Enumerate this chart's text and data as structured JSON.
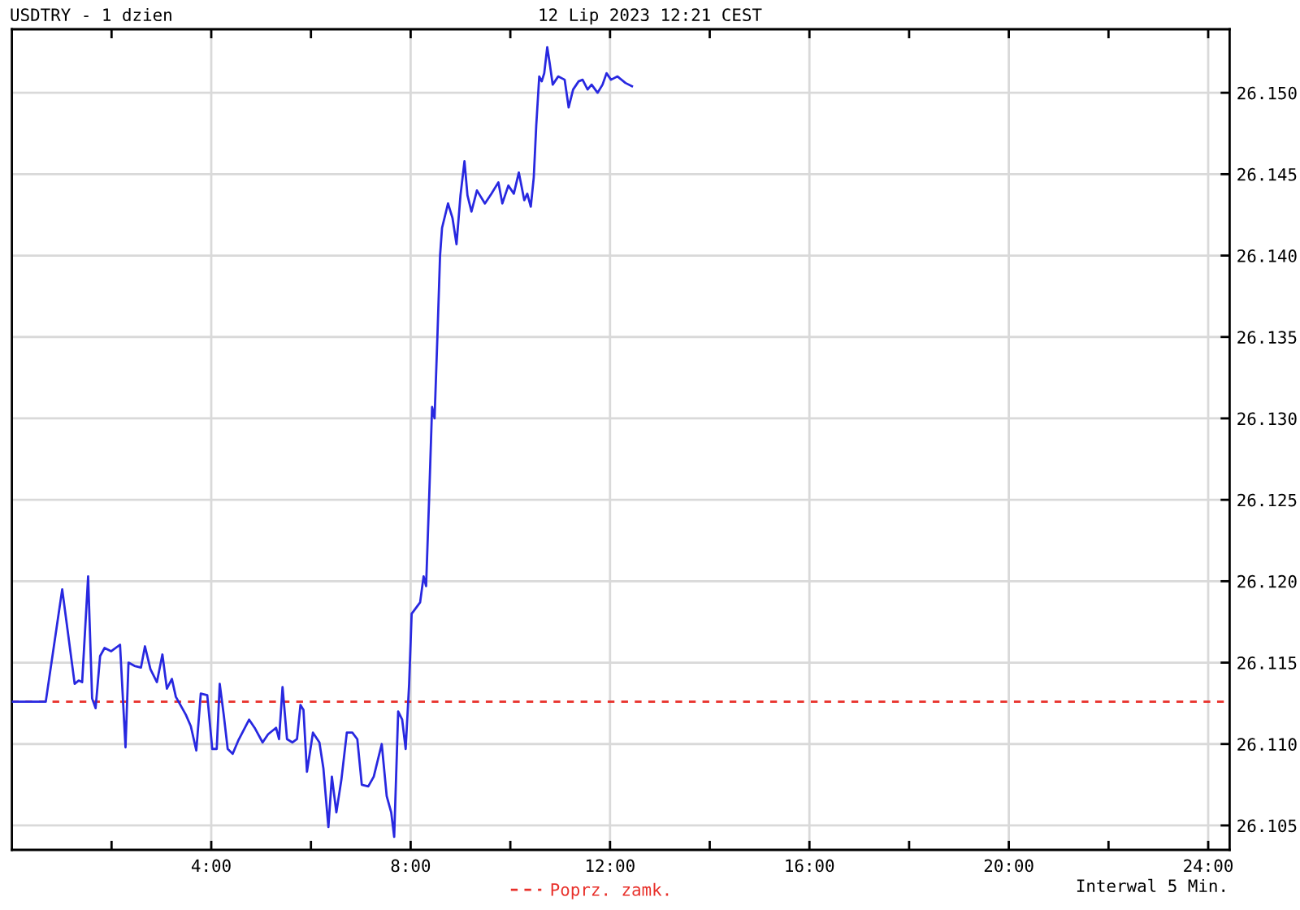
{
  "chart_data": {
    "type": "line",
    "title": "USDTRY - 1 dzien",
    "subtitle": "12 Lip 2023 12:21 CEST",
    "annotations": [
      "Interwal 5 Min."
    ],
    "series": [
      {
        "color": "#2828e0",
        "x": [
          0.0,
          0.68,
          1.01,
          1.26,
          1.34,
          1.41,
          1.53,
          1.61,
          1.68,
          1.77,
          1.86,
          1.99,
          2.17,
          2.28,
          2.34,
          2.46,
          2.59,
          2.67,
          2.78,
          2.91,
          3.02,
          3.11,
          3.21,
          3.29,
          3.49,
          3.59,
          3.7,
          3.79,
          3.92,
          4.02,
          4.11,
          4.17,
          4.25,
          4.33,
          4.43,
          4.54,
          4.76,
          4.87,
          5.03,
          5.14,
          5.3,
          5.36,
          5.43,
          5.52,
          5.63,
          5.72,
          5.79,
          5.85,
          5.92,
          6.04,
          6.17,
          6.25,
          6.35,
          6.42,
          6.51,
          6.61,
          6.72,
          6.83,
          6.93,
          7.02,
          7.15,
          7.26,
          7.42,
          7.52,
          7.61,
          7.67,
          7.75,
          7.83,
          7.9,
          7.97,
          8.02,
          8.19,
          8.26,
          8.31,
          8.37,
          8.43,
          8.48,
          8.54,
          8.59,
          8.63,
          8.75,
          8.84,
          8.92,
          9.0,
          9.08,
          9.14,
          9.22,
          9.33,
          9.49,
          9.62,
          9.76,
          9.84,
          9.96,
          10.07,
          10.17,
          10.28,
          10.34,
          10.41,
          10.47,
          10.52,
          10.58,
          10.63,
          10.68,
          10.74,
          10.79,
          10.85,
          10.96,
          11.09,
          11.17,
          11.26,
          11.37,
          11.45,
          11.55,
          11.63,
          11.75,
          11.85,
          11.93,
          12.02,
          12.15,
          12.31,
          12.44
        ],
        "values": [
          26.1126,
          26.1126,
          26.1195,
          26.1137,
          26.1139,
          26.1138,
          26.1203,
          26.1128,
          26.1122,
          26.1154,
          26.1159,
          26.1157,
          26.1161,
          26.1098,
          26.115,
          26.1148,
          26.1147,
          26.116,
          26.1146,
          26.1138,
          26.1155,
          26.1134,
          26.114,
          26.1129,
          26.1118,
          26.1111,
          26.1096,
          26.1131,
          26.113,
          26.1097,
          26.1097,
          26.1137,
          26.1118,
          26.1097,
          26.1094,
          26.1102,
          26.1115,
          26.111,
          26.1101,
          26.1106,
          26.111,
          26.1103,
          26.1135,
          26.1103,
          26.1101,
          26.1103,
          26.1124,
          26.1121,
          26.1083,
          26.1107,
          26.1101,
          26.1085,
          26.1049,
          26.108,
          26.1058,
          26.1078,
          26.1107,
          26.1107,
          26.1103,
          26.1075,
          26.1074,
          26.108,
          26.11,
          26.1068,
          26.1058,
          26.1043,
          26.112,
          26.1115,
          26.1097,
          26.1137,
          26.118,
          26.1187,
          26.1203,
          26.1197,
          26.125,
          26.1307,
          26.13,
          26.1353,
          26.14,
          26.1417,
          26.1432,
          26.1423,
          26.1407,
          26.1437,
          26.1458,
          26.1437,
          26.1427,
          26.144,
          26.1432,
          26.1438,
          26.1445,
          26.1432,
          26.1443,
          26.1438,
          26.1451,
          26.1434,
          26.1438,
          26.143,
          26.1448,
          26.148,
          26.151,
          26.1507,
          26.1512,
          26.1528,
          26.1518,
          26.1505,
          26.151,
          26.1508,
          26.1491,
          26.1502,
          26.1507,
          26.1508,
          26.1502,
          26.1505,
          26.15,
          26.1505,
          26.1512,
          26.1508,
          26.151,
          26.1506,
          26.1504
        ]
      }
    ],
    "xlim": [
      0,
      24.43
    ],
    "xticks": [
      {
        "value": 2,
        "label": null
      },
      {
        "value": 4,
        "label": "4:00"
      },
      {
        "value": 6,
        "label": null
      },
      {
        "value": 8,
        "label": "8:00"
      },
      {
        "value": 10,
        "label": null
      },
      {
        "value": 12,
        "label": "12:00"
      },
      {
        "value": 14,
        "label": null
      },
      {
        "value": 16,
        "label": "16:00"
      },
      {
        "value": 18,
        "label": null
      },
      {
        "value": 20,
        "label": "20:00"
      },
      {
        "value": 22,
        "label": null
      },
      {
        "value": 24,
        "label": "24:00"
      }
    ],
    "ylim": [
      26.1035,
      26.1539
    ],
    "yticks": [
      26.105,
      {
        "value": 26.11,
        "label": "26.110"
      },
      26.115,
      {
        "value": 26.12,
        "label": "26.120"
      },
      26.125,
      {
        "value": 26.13,
        "label": "26.130"
      },
      26.135,
      {
        "value": 26.14,
        "label": "26.140"
      },
      26.145,
      {
        "value": 26.15,
        "label": "26.150"
      }
    ],
    "ref_lines": [
      {
        "axis": "y",
        "value": 26.1126,
        "label": "Poprz. zamk.",
        "color": "#e8302a",
        "line_style": "dashed"
      }
    ],
    "grid": true,
    "legend": "bottom"
  }
}
